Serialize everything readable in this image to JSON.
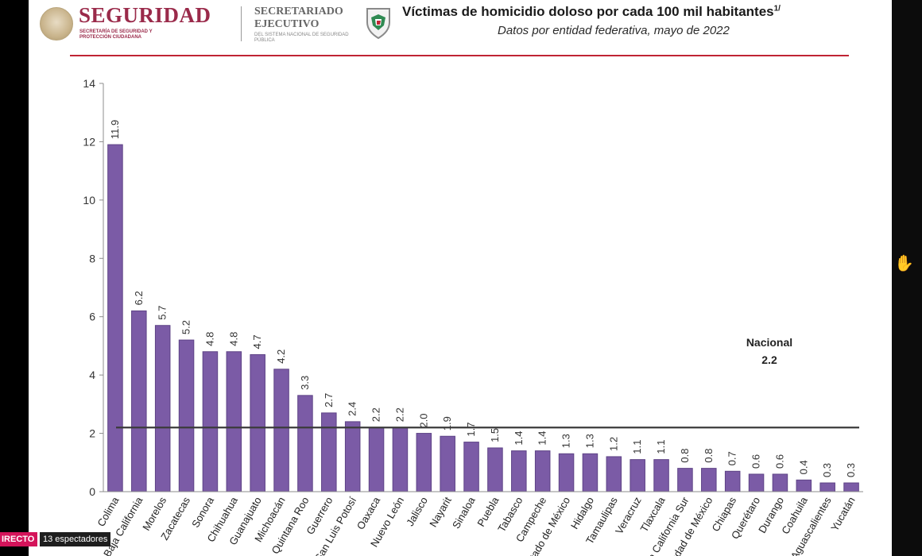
{
  "header": {
    "brand_main": "SEGURIDAD",
    "brand_main_sub": "SECRETARÍA DE SEGURIDAD Y PROTECCIÓN CIUDADANA",
    "brand_secondary": "SECRETARIADO EJECUTIVO",
    "brand_secondary_sub": "DEL SISTEMA NACIONAL DE SEGURIDAD PÚBLICA",
    "title": "Víctimas de homicidio doloso por cada 100 mil habitantes",
    "title_note": "1/",
    "subtitle": "Datos por entidad federativa, mayo de 2022"
  },
  "colors": {
    "bar": "#7b5ba6",
    "bar_edge": "#5e4386",
    "brand": "#9a2a4a",
    "rule": "#c02434",
    "reference": "#3b3b3b"
  },
  "chart_data": {
    "type": "bar",
    "title": "Víctimas de homicidio doloso por cada 100 mil habitantes",
    "subtitle": "Datos por entidad federativa, mayo de 2022",
    "categories": [
      "Colima",
      "Baja California",
      "Morelos",
      "Zacatecas",
      "Sonora",
      "Chihuahua",
      "Guanajuato",
      "Michoacán",
      "Quintana Roo",
      "Guerrero",
      "San Luis Potosí",
      "Oaxaca",
      "Nuevo León",
      "Jalisco",
      "Nayarit",
      "Sinaloa",
      "Puebla",
      "Tabasco",
      "Campeche",
      "Estado de México",
      "Hidalgo",
      "Tamaulipas",
      "Veracruz",
      "Tlaxcala",
      "Baja California Sur",
      "Ciudad de México",
      "Chiapas",
      "Querétaro",
      "Durango",
      "Coahuila",
      "Aguascalientes",
      "Yucatán"
    ],
    "values": [
      11.9,
      6.2,
      5.7,
      5.2,
      4.8,
      4.8,
      4.7,
      4.2,
      3.3,
      2.7,
      2.4,
      2.2,
      2.2,
      2.0,
      1.9,
      1.7,
      1.5,
      1.4,
      1.4,
      1.3,
      1.3,
      1.2,
      1.1,
      1.1,
      0.8,
      0.8,
      0.7,
      0.6,
      0.6,
      0.4,
      0.3,
      0.3
    ],
    "value_labels": [
      "11.9",
      "6.2",
      "5.7",
      "5.2",
      "4.8",
      "4.8",
      "4.7",
      "4.2",
      "3.3",
      "2.7",
      "2.4",
      "2.2",
      "2.2",
      "2.0",
      "1.9",
      "1.7",
      "1.5",
      "1.4",
      "1.4",
      "1.3",
      "1.3",
      "1.2",
      "1.1",
      "1.1",
      "0.8",
      "0.8",
      "0.7",
      "0.6",
      "0.6",
      "0.4",
      "0.3",
      "0.3"
    ],
    "ylim": [
      0,
      14
    ],
    "yticks": [
      0,
      2,
      4,
      6,
      8,
      10,
      12,
      14
    ],
    "reference_line": {
      "label": "Nacional",
      "value": 2.2,
      "value_label": "2.2"
    },
    "grid": false
  },
  "overlay": {
    "live_label": "IRECTO",
    "viewers_label": "13 espectadores",
    "cursor_icon": "hand-cursor-icon"
  }
}
